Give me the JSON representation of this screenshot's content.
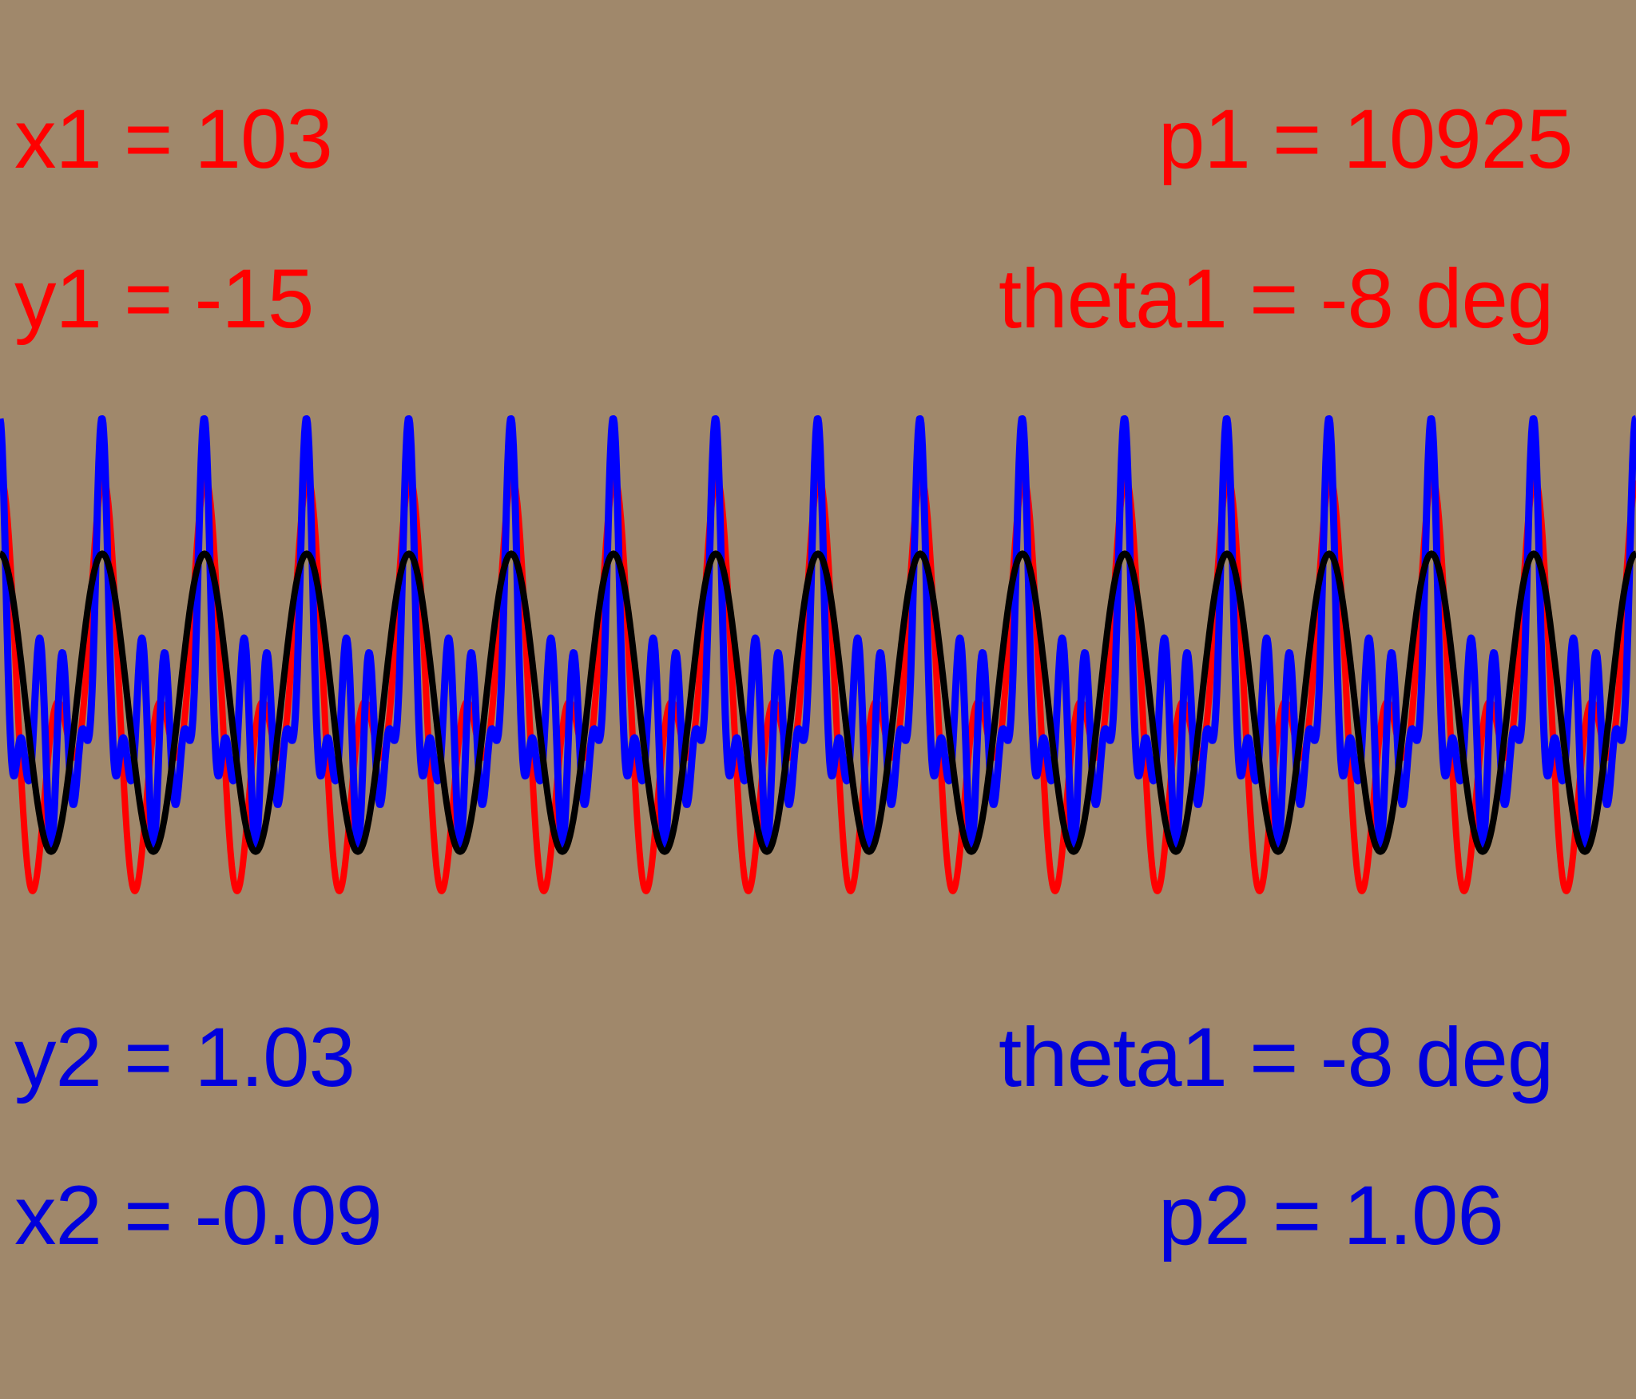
{
  "colors": {
    "background": "#a0886b",
    "series_red": "#ff0000",
    "series_blue": "#0000ff",
    "series_black": "#000000",
    "text_top": "#ff0000",
    "text_bottom": "#0000dd"
  },
  "readouts": {
    "x1": "x1 = 103",
    "p1": "p1 = 10925",
    "y1": "y1 = -15",
    "theta1_top": "theta1 = -8 deg",
    "y2": "y2 = 1.03",
    "theta1_bottom": "theta1 = -8 deg",
    "x2": "x2 = -0.09",
    "p2": "p2 = 1.06"
  },
  "chart_data": {
    "type": "line",
    "title": "",
    "xlabel": "",
    "ylabel": "",
    "grid": false,
    "axes_visible": false,
    "xlim": [
      0,
      16
    ],
    "ylim": [
      -1.8,
      1.8
    ],
    "series": [
      {
        "key": "black",
        "components": [
          {
            "amp": 0.73,
            "cycles_per_unit": 1.0,
            "phase": 0.0
          }
        ]
      },
      {
        "key": "red",
        "components": [
          {
            "amp": 0.65,
            "cycles_per_unit": 1.0,
            "phase": 0.35
          },
          {
            "amp": 0.52,
            "cycles_per_unit": 2.0,
            "phase": -0.4
          }
        ]
      },
      {
        "key": "blue",
        "components": [
          {
            "amp": 0.35,
            "cycles_per_unit": 1.0,
            "phase": 0.0
          },
          {
            "amp": 0.35,
            "cycles_per_unit": 2.0,
            "phase": 0.2
          },
          {
            "amp": 0.38,
            "cycles_per_unit": 3.0,
            "phase": 0.1
          },
          {
            "amp": 0.32,
            "cycles_per_unit": 5.0,
            "phase": 0.0
          }
        ]
      }
    ]
  }
}
